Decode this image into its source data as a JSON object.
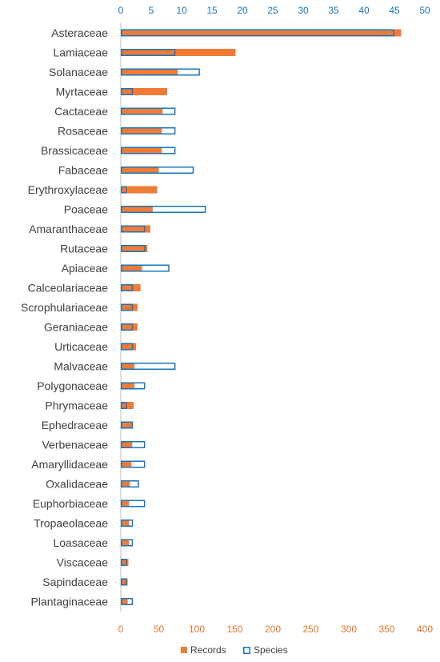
{
  "chart_data": {
    "type": "bar",
    "orientation": "horizontal",
    "categories": [
      "Asteraceae",
      "Lamiaceae",
      "Solanaceae",
      "Myrtaceae",
      "Cactaceae",
      "Rosaceae",
      "Brassicaceae",
      "Fabaceae",
      "Erythroxylaceae",
      "Poaceae",
      "Amaranthaceae",
      "Rutaceae",
      "Apiaceae",
      "Calceolariaceae",
      "Scrophulariaceae",
      "Geraniaceae",
      "Urticaceae",
      "Malvaceae",
      "Polygonaceae",
      "Phrymaceae",
      "Ephedraceae",
      "Verbenaceae",
      "Amaryllidaceae",
      "Oxalidaceae",
      "Euphorbiaceae",
      "Tropaeolaceae",
      "Loasaceae",
      "Viscaceae",
      "Sapindaceae",
      "Plantaginaceae"
    ],
    "series": [
      {
        "name": "Records",
        "axis": "bottom",
        "color": "#f07b37",
        "style": "filled",
        "values": [
          369,
          151,
          75,
          61,
          55,
          54,
          54,
          50,
          48,
          42,
          39,
          35,
          28,
          26,
          22,
          22,
          20,
          18,
          18,
          17,
          16,
          15,
          14,
          12,
          11,
          11,
          11,
          10,
          9,
          9
        ]
      },
      {
        "name": "Species",
        "axis": "top",
        "color": "#1b75b8",
        "style": "outline",
        "values": [
          45,
          9,
          13,
          2,
          9,
          9,
          9,
          12,
          1,
          14,
          4,
          4,
          8,
          2,
          2,
          2,
          2,
          9,
          4,
          1,
          2,
          4,
          4,
          3,
          4,
          2,
          2,
          1,
          1,
          2
        ]
      }
    ],
    "x_bottom": {
      "range": [
        0,
        400
      ],
      "ticks": [
        "0",
        "50",
        "100",
        "150",
        "200",
        "250",
        "300",
        "350",
        "400"
      ],
      "color": "#e8732a"
    },
    "x_top": {
      "range": [
        0,
        50
      ],
      "ticks": [
        "0",
        "5",
        "10",
        "15",
        "20",
        "25",
        "30",
        "35",
        "40",
        "45",
        "50"
      ],
      "color": "#1b75b8"
    },
    "legend": {
      "position": "bottom",
      "items": [
        "Records",
        "Species"
      ]
    },
    "grid": false,
    "title": "",
    "xlabel": "",
    "ylabel": ""
  }
}
